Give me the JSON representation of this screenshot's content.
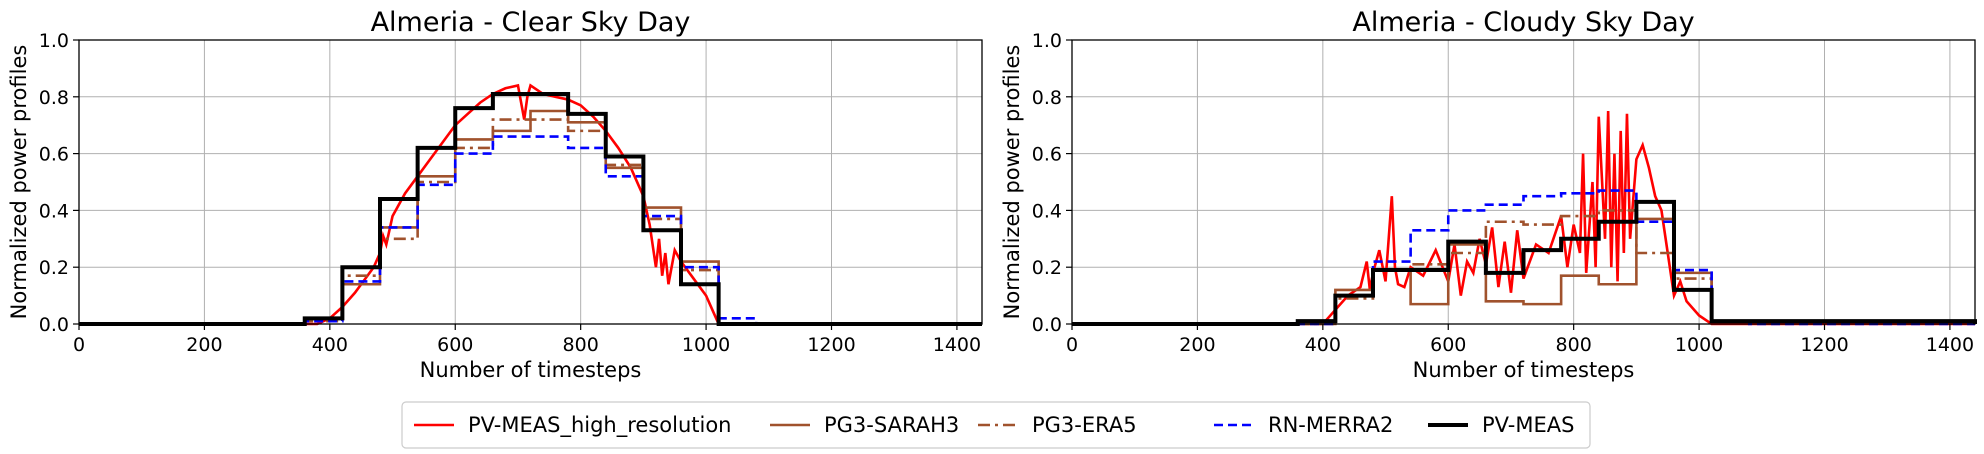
{
  "chart_data": [
    {
      "type": "line",
      "title": "Almeria - Clear Sky Day",
      "xlabel": "Number of timesteps",
      "ylabel": "Normalized power profiles",
      "xlim": [
        0,
        1440
      ],
      "ylim": [
        0,
        1.0
      ],
      "xticks": [
        "0",
        "200",
        "400",
        "600",
        "800",
        "1000",
        "1200",
        "1400"
      ],
      "yticks": [
        "0.0",
        "0.2",
        "0.4",
        "0.6",
        "0.8",
        "1.0"
      ],
      "grid": true,
      "series": [
        {
          "name": "PV-MEAS_high_resolution",
          "x": [
            0,
            380,
            400,
            420,
            440,
            460,
            470,
            480,
            485,
            490,
            500,
            520,
            540,
            560,
            580,
            600,
            620,
            640,
            660,
            680,
            700,
            710,
            715,
            720,
            740,
            760,
            780,
            800,
            820,
            840,
            860,
            880,
            900,
            910,
            920,
            925,
            930,
            935,
            940,
            950,
            960,
            980,
            1000,
            1010,
            1020,
            1440
          ],
          "y": [
            0,
            0,
            0.02,
            0.06,
            0.11,
            0.17,
            0.2,
            0.25,
            0.31,
            0.28,
            0.38,
            0.46,
            0.52,
            0.58,
            0.64,
            0.7,
            0.74,
            0.78,
            0.81,
            0.83,
            0.84,
            0.72,
            0.8,
            0.84,
            0.81,
            0.8,
            0.79,
            0.77,
            0.73,
            0.68,
            0.62,
            0.55,
            0.45,
            0.35,
            0.2,
            0.3,
            0.17,
            0.25,
            0.14,
            0.26,
            0.22,
            0.16,
            0.1,
            0.05,
            0.0,
            0
          ]
        },
        {
          "name": "PG3-SARAH3",
          "step": true,
          "x": [
            0,
            360,
            420,
            480,
            540,
            600,
            660,
            720,
            780,
            840,
            900,
            960,
            1020,
            1440
          ],
          "y": [
            0,
            0.02,
            0.14,
            0.34,
            0.52,
            0.65,
            0.68,
            0.75,
            0.71,
            0.55,
            0.41,
            0.22,
            0,
            0
          ]
        },
        {
          "name": "PG3-ERA5",
          "step": true,
          "x": [
            0,
            360,
            420,
            480,
            540,
            600,
            660,
            720,
            780,
            840,
            900,
            960,
            1020,
            1440
          ],
          "y": [
            0,
            0.01,
            0.17,
            0.3,
            0.5,
            0.62,
            0.72,
            0.72,
            0.68,
            0.56,
            0.37,
            0.19,
            0,
            0
          ]
        },
        {
          "name": "RN-MERRA2",
          "step": true,
          "x": [
            0,
            360,
            420,
            480,
            540,
            600,
            660,
            720,
            780,
            840,
            900,
            960,
            1020,
            1080,
            1440
          ],
          "y": [
            0,
            0.01,
            0.15,
            0.34,
            0.49,
            0.6,
            0.66,
            0.66,
            0.62,
            0.52,
            0.38,
            0.2,
            0.02,
            0,
            0
          ]
        },
        {
          "name": "PV-MEAS",
          "step": true,
          "x": [
            0,
            360,
            420,
            480,
            540,
            600,
            660,
            720,
            780,
            840,
            900,
            960,
            1020,
            1440
          ],
          "y": [
            0,
            0.02,
            0.2,
            0.44,
            0.62,
            0.76,
            0.81,
            0.81,
            0.74,
            0.59,
            0.33,
            0.14,
            0,
            0
          ]
        }
      ]
    },
    {
      "type": "line",
      "title": "Almeria - Cloudy Sky Day",
      "xlabel": "Number of timesteps",
      "ylabel": "Normalized power profiles",
      "xlim": [
        0,
        1440
      ],
      "ylim": [
        0,
        1.0
      ],
      "xticks": [
        "0",
        "200",
        "400",
        "600",
        "800",
        "1000",
        "1200",
        "1400"
      ],
      "yticks": [
        "0.0",
        "0.2",
        "0.4",
        "0.6",
        "0.8",
        "1.0"
      ],
      "grid": true,
      "series": [
        {
          "name": "PV-MEAS_high_resolution",
          "x": [
            0,
            400,
            420,
            440,
            460,
            470,
            475,
            480,
            490,
            500,
            505,
            510,
            515,
            520,
            530,
            540,
            560,
            580,
            600,
            610,
            620,
            630,
            640,
            650,
            660,
            670,
            680,
            690,
            700,
            710,
            720,
            740,
            760,
            780,
            790,
            800,
            810,
            815,
            820,
            830,
            835,
            840,
            850,
            855,
            860,
            865,
            870,
            875,
            880,
            885,
            890,
            900,
            910,
            920,
            930,
            940,
            950,
            960,
            970,
            980,
            1000,
            1020,
            1440
          ],
          "y": [
            0,
            0,
            0.05,
            0.1,
            0.13,
            0.22,
            0.12,
            0.18,
            0.26,
            0.15,
            0.3,
            0.45,
            0.2,
            0.14,
            0.13,
            0.2,
            0.17,
            0.26,
            0.15,
            0.28,
            0.1,
            0.22,
            0.18,
            0.3,
            0.21,
            0.34,
            0.13,
            0.29,
            0.11,
            0.33,
            0.16,
            0.28,
            0.25,
            0.38,
            0.2,
            0.35,
            0.25,
            0.6,
            0.18,
            0.5,
            0.2,
            0.73,
            0.3,
            0.75,
            0.2,
            0.6,
            0.15,
            0.68,
            0.25,
            0.74,
            0.3,
            0.58,
            0.63,
            0.55,
            0.45,
            0.4,
            0.25,
            0.1,
            0.15,
            0.08,
            0.03,
            0.0,
            0
          ]
        },
        {
          "name": "PG3-SARAH3",
          "step": true,
          "x": [
            0,
            360,
            420,
            480,
            540,
            600,
            660,
            720,
            780,
            840,
            900,
            960,
            1020,
            1440
          ],
          "y": [
            0,
            0.0,
            0.12,
            0.19,
            0.07,
            0.28,
            0.08,
            0.07,
            0.17,
            0.14,
            0.37,
            0.18,
            0.01,
            0
          ]
        },
        {
          "name": "PG3-ERA5",
          "step": true,
          "x": [
            0,
            360,
            420,
            480,
            540,
            600,
            660,
            720,
            780,
            840,
            900,
            960,
            1020,
            1440
          ],
          "y": [
            0,
            0.0,
            0.09,
            0.19,
            0.21,
            0.25,
            0.36,
            0.35,
            0.38,
            0.4,
            0.25,
            0.16,
            0.01,
            0
          ]
        },
        {
          "name": "RN-MERRA2",
          "step": true,
          "x": [
            0,
            360,
            420,
            480,
            540,
            600,
            660,
            720,
            780,
            840,
            900,
            960,
            1020,
            1080,
            1440
          ],
          "y": [
            0,
            0.0,
            0.1,
            0.22,
            0.33,
            0.4,
            0.42,
            0.45,
            0.46,
            0.47,
            0.36,
            0.19,
            0.01,
            0,
            0
          ]
        },
        {
          "name": "PV-MEAS",
          "step": true,
          "x": [
            0,
            360,
            420,
            480,
            540,
            600,
            660,
            720,
            780,
            840,
            900,
            960,
            1020,
            1440
          ],
          "y": [
            0,
            0.01,
            0.1,
            0.19,
            0.19,
            0.29,
            0.18,
            0.26,
            0.3,
            0.36,
            0.43,
            0.12,
            0.01,
            0
          ]
        }
      ]
    }
  ],
  "legend": {
    "placement": "bottom-center",
    "items": [
      {
        "label": "PV-MEAS_high_resolution",
        "color": "#ff0000",
        "dash": "solid"
      },
      {
        "label": "PG3-SARAH3",
        "color": "#a0522d",
        "dash": "solid"
      },
      {
        "label": "PG3-ERA5",
        "color": "#a0522d",
        "dash": "dashdot"
      },
      {
        "label": "RN-MERRA2",
        "color": "#0000ff",
        "dash": "dashed"
      },
      {
        "label": "PV-MEAS",
        "color": "#000000",
        "dash": "solid"
      }
    ]
  }
}
